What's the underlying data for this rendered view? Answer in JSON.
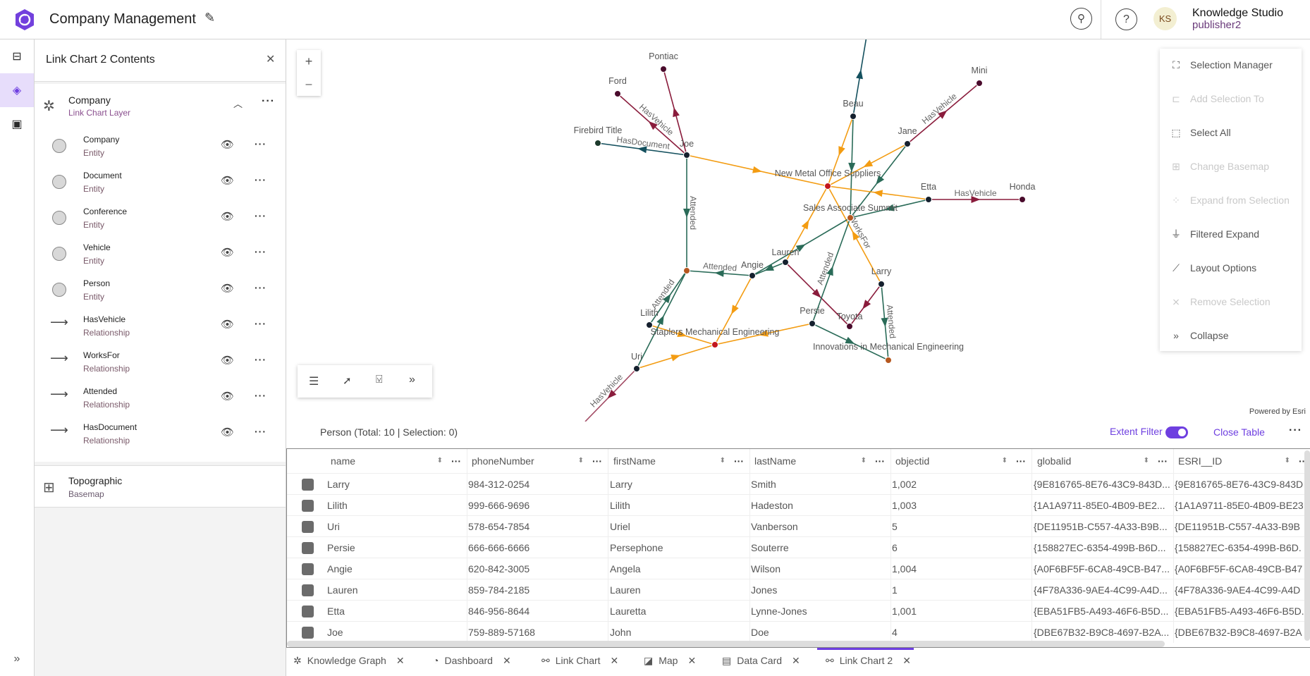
{
  "header": {
    "title": "Company Management",
    "user_initials": "KS",
    "user_name": "Knowledge Studio",
    "user_role": "publisher2",
    "brand_color": "#7a3fe0"
  },
  "rail": {
    "icons": [
      "hierarchy-icon",
      "layers-icon",
      "save-icon"
    ],
    "active": "layers-icon"
  },
  "panel": {
    "title": "Link Chart 2 Contents",
    "group": {
      "title": "Company",
      "subtitle": "Link Chart Layer"
    },
    "layers": [
      {
        "label": "Company",
        "type": "Entity"
      },
      {
        "label": "Document",
        "type": "Entity"
      },
      {
        "label": "Conference",
        "type": "Entity"
      },
      {
        "label": "Vehicle",
        "type": "Entity"
      },
      {
        "label": "Person",
        "type": "Entity"
      },
      {
        "label": "HasVehicle",
        "type": "Relationship"
      },
      {
        "label": "WorksFor",
        "type": "Relationship"
      },
      {
        "label": "Attended",
        "type": "Relationship"
      },
      {
        "label": "HasDocument",
        "type": "Relationship"
      }
    ],
    "basemap": {
      "title": "Topographic",
      "subtitle": "Basemap"
    }
  },
  "map": {
    "zoom_in": "+",
    "zoom_out": "–",
    "attribution": "Powered by Esri",
    "menu": [
      {
        "label": "Selection Manager",
        "icon": "selection-manager-icon",
        "enabled": true
      },
      {
        "label": "Add Selection To",
        "icon": "add-selection-icon",
        "enabled": false
      },
      {
        "label": "Select All",
        "icon": "select-all-icon",
        "enabled": true
      },
      {
        "label": "Change Basemap",
        "icon": "basemap-icon",
        "enabled": false
      },
      {
        "label": "Expand from Selection",
        "icon": "expand-icon",
        "enabled": false
      },
      {
        "label": "Filtered Expand",
        "icon": "filter-icon",
        "enabled": true
      },
      {
        "label": "Layout Options",
        "icon": "layout-icon",
        "enabled": true
      },
      {
        "label": "Remove Selection",
        "icon": "remove-selection-icon",
        "enabled": false
      },
      {
        "label": "Collapse",
        "icon": "chevrons-right-icon",
        "enabled": true
      }
    ],
    "toolbar": [
      "list-icon",
      "select-cursor-icon",
      "filter-box-icon",
      "chevrons-right-icon"
    ],
    "graph": {
      "colors": {
        "HasVehicle": "#8a1c3c",
        "HasDocument": "#14505e",
        "WorksFor": "#f39c12",
        "Attended": "#2a6b58",
        "Person": "#15202e",
        "Vehicle": "#4a0b2c",
        "Document": "#1c3a2c",
        "Company": "#c3161c",
        "Conference": "#b5571f"
      },
      "nodes": [
        {
          "id": "Pontiac",
          "type": "Vehicle"
        },
        {
          "id": "Ford",
          "type": "Vehicle"
        },
        {
          "id": "Firebird Title",
          "type": "Document"
        },
        {
          "id": "Joe",
          "type": "Person"
        },
        {
          "id": "Beau",
          "type": "Person"
        },
        {
          "id": "Jane",
          "type": "Person"
        },
        {
          "id": "Mini",
          "type": "Vehicle"
        },
        {
          "id": "New Metal Office Suppliers",
          "type": "Company"
        },
        {
          "id": "Etta",
          "type": "Person"
        },
        {
          "id": "Honda",
          "type": "Vehicle"
        },
        {
          "id": "Sales Associate Summit",
          "type": "Conference"
        },
        {
          "id": "Lauren",
          "type": "Person"
        },
        {
          "id": "Angie",
          "type": "Person"
        },
        {
          "id": "",
          "type": "Conference",
          "key": "conf2"
        },
        {
          "id": "Larry",
          "type": "Person"
        },
        {
          "id": "Lilith",
          "type": "Person"
        },
        {
          "id": "Persie",
          "type": "Person"
        },
        {
          "id": "Toyota",
          "type": "Vehicle"
        },
        {
          "id": "Staplers Mechanical Engineering",
          "type": "Company"
        },
        {
          "id": "Innovations in Mechanical Engineering",
          "type": "Conference"
        },
        {
          "id": "Uri",
          "type": "Person"
        }
      ],
      "edges": [
        {
          "from": "Joe",
          "to": "Pontiac",
          "type": "HasVehicle",
          "label": ""
        },
        {
          "from": "Joe",
          "to": "Ford",
          "type": "HasVehicle",
          "label": "HasVehicle"
        },
        {
          "from": "Joe",
          "to": "Firebird Title",
          "type": "HasDocument",
          "label": "HasDocument"
        },
        {
          "from": "Joe",
          "to": "New Metal Office Suppliers",
          "type": "WorksFor",
          "label": ""
        },
        {
          "from": "Joe",
          "to": "conf2",
          "type": "Attended",
          "label": "Attended"
        },
        {
          "from": "Beau",
          "to": "top",
          "type": "HasDocument",
          "label": ""
        },
        {
          "from": "Beau",
          "to": "New Metal Office Suppliers",
          "type": "WorksFor",
          "label": ""
        },
        {
          "from": "Beau",
          "to": "Sales Associate Summit",
          "type": "Attended",
          "label": ""
        },
        {
          "from": "Jane",
          "to": "Mini",
          "type": "HasVehicle",
          "label": "HasVehicle"
        },
        {
          "from": "Jane",
          "to": "New Metal Office Suppliers",
          "type": "WorksFor",
          "label": ""
        },
        {
          "from": "Jane",
          "to": "Sales Associate Summit",
          "type": "Attended",
          "label": ""
        },
        {
          "from": "Etta",
          "to": "Honda",
          "type": "HasVehicle",
          "label": "HasVehicle"
        },
        {
          "from": "Etta",
          "to": "New Metal Office Suppliers",
          "type": "WorksFor",
          "label": ""
        },
        {
          "from": "Etta",
          "to": "Sales Associate Summit",
          "type": "Attended",
          "label": ""
        },
        {
          "from": "Larry",
          "to": "New Metal Office Suppliers",
          "type": "WorksFor",
          "label": "WorksFor"
        },
        {
          "from": "Larry",
          "to": "Toyota",
          "type": "HasVehicle",
          "label": ""
        },
        {
          "from": "Larry",
          "to": "Innovations in Mechanical Engineering",
          "type": "Attended",
          "label": "Attended"
        },
        {
          "from": "Lauren",
          "to": "New Metal Office Suppliers",
          "type": "WorksFor",
          "label": ""
        },
        {
          "from": "Lauren",
          "to": "Toyota",
          "type": "HasVehicle",
          "label": ""
        },
        {
          "from": "Lauren",
          "to": "Angie",
          "type": "Attended",
          "label": ""
        },
        {
          "from": "Angie",
          "to": "Sales Associate Summit",
          "type": "Attended",
          "label": ""
        },
        {
          "from": "Angie",
          "to": "conf2",
          "type": "Attended",
          "label": "Attended"
        },
        {
          "from": "Angie",
          "to": "Staplers Mechanical Engineering",
          "type": "WorksFor",
          "label": ""
        },
        {
          "from": "Persie",
          "to": "Sales Associate Summit",
          "type": "Attended",
          "label": "Attended"
        },
        {
          "from": "Persie",
          "to": "Staplers Mechanical Engineering",
          "type": "WorksFor",
          "label": ""
        },
        {
          "from": "Persie",
          "to": "Innovations in Mechanical Engineering",
          "type": "Attended",
          "label": ""
        },
        {
          "from": "Lilith",
          "to": "conf2",
          "type": "Attended",
          "label": "Attended"
        },
        {
          "from": "Lilith",
          "to": "Staplers Mechanical Engineering",
          "type": "WorksFor",
          "label": ""
        },
        {
          "from": "Uri",
          "to": "conf2",
          "type": "Attended",
          "label": ""
        },
        {
          "from": "Uri",
          "to": "Staplers Mechanical Engineering",
          "type": "WorksFor",
          "label": ""
        },
        {
          "from": "Uri",
          "to": "bottom",
          "type": "HasVehicle",
          "label": "HasVehicle"
        }
      ]
    }
  },
  "table": {
    "title": "Person (Total: 10 | Selection: 0)",
    "extent_filter_label": "Extent Filter",
    "extent_filter_on": true,
    "close_label": "Close Table",
    "columns": [
      "name",
      "phoneNumber",
      "firstName",
      "lastName",
      "objectid",
      "globalid",
      "ESRI__ID"
    ],
    "rows": [
      [
        "Larry",
        "984-312-0254",
        "Larry",
        "Smith",
        "1,002",
        "{9E816765-8E76-43C9-843D...",
        "{9E816765-8E76-43C9-843D"
      ],
      [
        "Lilith",
        "999-666-9696",
        "Lilith",
        "Hadeston",
        "1,003",
        "{1A1A9711-85E0-4B09-BE2...",
        "{1A1A9711-85E0-4B09-BE23"
      ],
      [
        "Uri",
        "578-654-7854",
        "Uriel",
        "Vanberson",
        "5",
        "{DE11951B-C557-4A33-B9B...",
        "{DE11951B-C557-4A33-B9B"
      ],
      [
        "Persie",
        "666-666-6666",
        "Persephone",
        "Souterre",
        "6",
        "{158827EC-6354-499B-B6D...",
        "{158827EC-6354-499B-B6D."
      ],
      [
        "Angie",
        "620-842-3005",
        "Angela",
        "Wilson",
        "1,004",
        "{A0F6BF5F-6CA8-49CB-B47...",
        "{A0F6BF5F-6CA8-49CB-B47"
      ],
      [
        "Lauren",
        "859-784-2185",
        "Lauren",
        "Jones",
        "1",
        "{4F78A336-9AE4-4C99-A4D...",
        "{4F78A336-9AE4-4C99-A4D"
      ],
      [
        "Etta",
        "846-956-8644",
        "Lauretta",
        "Lynne-Jones",
        "1,001",
        "{EBA51FB5-A493-46F6-B5D...",
        "{EBA51FB5-A493-46F6-B5D."
      ],
      [
        "Joe",
        "759-889-57168",
        "John",
        "Doe",
        "4",
        "{DBE67B32-B9C8-4697-B2A...",
        "{DBE67B32-B9C8-4697-B2A"
      ]
    ]
  },
  "tabs": [
    {
      "label": "Knowledge Graph",
      "icon": "knowledge-graph-icon"
    },
    {
      "label": "Dashboard",
      "icon": "dashboard-icon"
    },
    {
      "label": "Link Chart",
      "icon": "link-chart-icon"
    },
    {
      "label": "Map",
      "icon": "map-icon"
    },
    {
      "label": "Data Card",
      "icon": "data-card-icon"
    },
    {
      "label": "Link Chart 2",
      "icon": "link-chart-icon",
      "active": true
    }
  ],
  "accent_color": "#6e3fe0"
}
